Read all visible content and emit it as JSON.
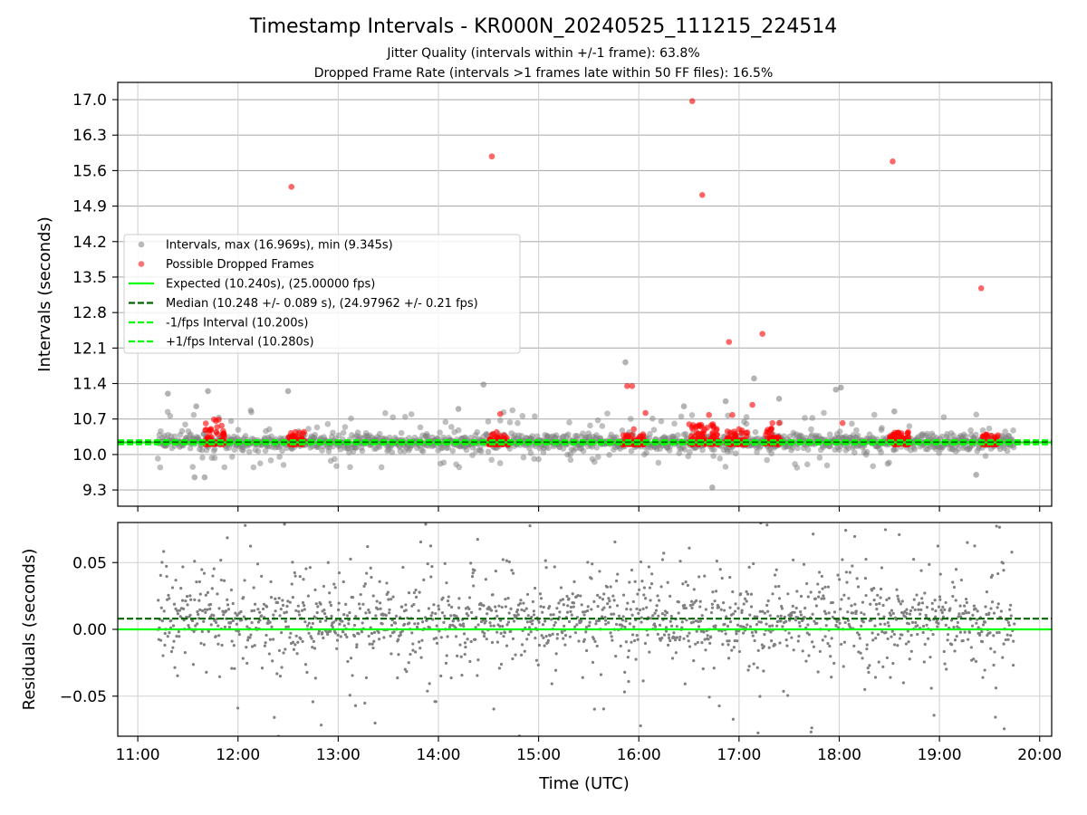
{
  "figure": {
    "title": "Timestamp Intervals - KR000N_20240525_111215_224514",
    "subtitle_1": "Jitter Quality (intervals within +/-1 frame): 63.8%",
    "subtitle_2": "Dropped Frame Rate (intervals >1 frames late within 50 FF files): 16.5%"
  },
  "colors": {
    "intervals": "#808080",
    "dropped": "#ff0000",
    "expected": "#00ff00",
    "median": "#006400",
    "fps_interval": "#00ff00",
    "residuals": "#808080",
    "grid": "#b0b0b0"
  },
  "chart_data": [
    {
      "type": "scatter",
      "panel": "top",
      "ylabel": "Intervals (seconds)",
      "xlim_hours": [
        10.8,
        20.12
      ],
      "ylim": [
        8.98,
        17.34
      ],
      "y_ticks": [
        "9.3",
        "10.0",
        "10.7",
        "11.4",
        "12.1",
        "12.8",
        "13.5",
        "14.2",
        "14.9",
        "15.6",
        "16.3",
        "17.0"
      ],
      "y_tick_values": [
        9.3,
        10.0,
        10.7,
        11.4,
        12.1,
        12.8,
        13.5,
        14.2,
        14.9,
        15.6,
        16.3,
        17.0
      ],
      "grid": true,
      "legend_position": "center-left",
      "legend": [
        {
          "label": "Intervals, max (16.969s), min (9.345s)",
          "kind": "marker",
          "color": "#808080"
        },
        {
          "label": "Possible Dropped Frames",
          "kind": "marker",
          "color": "#ff0000"
        },
        {
          "label": "Expected (10.240s), (25.00000 fps)",
          "kind": "solid",
          "color": "#00ff00"
        },
        {
          "label": "Median (10.248 +/- 0.089 s), (24.97962 +/- 0.21 fps)",
          "kind": "dashed",
          "color": "#006400"
        },
        {
          "label": "-1/fps Interval (10.200s)",
          "kind": "dashed",
          "color": "#00ff00"
        },
        {
          "label": "+1/fps Interval (10.280s)",
          "kind": "dashed",
          "color": "#00ff00"
        }
      ],
      "series": [
        {
          "name": "Intervals, max (16.969s), min (9.345s)",
          "x_range": [
            "11:12",
            "19:45"
          ],
          "y_min": 9.345,
          "y_max": 16.969,
          "notable_points": [
            {
              "x": "11:18",
              "y": 11.2
            },
            {
              "x": "11:35",
              "y": 10.95
            },
            {
              "x": "11:42",
              "y": 11.25
            },
            {
              "x": "12:30",
              "y": 11.25
            },
            {
              "x": "14:27",
              "y": 11.38
            },
            {
              "x": "14:12",
              "y": 10.9
            },
            {
              "x": "15:52",
              "y": 11.82
            },
            {
              "x": "16:27",
              "y": 10.95
            },
            {
              "x": "16:44",
              "y": 9.35
            },
            {
              "x": "16:52",
              "y": 11.05
            },
            {
              "x": "17:09",
              "y": 11.5
            },
            {
              "x": "17:24",
              "y": 11.1
            },
            {
              "x": "17:58",
              "y": 11.28
            },
            {
              "x": "18:01",
              "y": 11.32
            },
            {
              "x": "18:33",
              "y": 10.85
            },
            {
              "x": "11:40",
              "y": 9.55
            },
            {
              "x": "11:34",
              "y": 9.55
            },
            {
              "x": "19:22",
              "y": 9.6
            }
          ]
        },
        {
          "name": "Possible Dropped Frames",
          "points": [
            {
              "x": "12:32",
              "y": 15.28
            },
            {
              "x": "14:32",
              "y": 15.88
            },
            {
              "x": "16:32",
              "y": 16.97
            },
            {
              "x": "16:38",
              "y": 15.12
            },
            {
              "x": "18:32",
              "y": 15.78
            },
            {
              "x": "19:25",
              "y": 13.28
            },
            {
              "x": "17:14",
              "y": 12.38
            },
            {
              "x": "16:54",
              "y": 12.22
            },
            {
              "x": "15:53",
              "y": 11.35
            },
            {
              "x": "15:56",
              "y": 11.35
            },
            {
              "x": "16:04",
              "y": 10.82
            },
            {
              "x": "17:08",
              "y": 10.98
            },
            {
              "x": "17:20",
              "y": 10.62
            },
            {
              "x": "17:24",
              "y": 10.62
            },
            {
              "x": "16:56",
              "y": 10.78
            },
            {
              "x": "16:42",
              "y": 10.78
            },
            {
              "x": "14:37",
              "y": 10.8
            },
            {
              "x": "18:02",
              "y": 10.62
            },
            {
              "x": "17:00",
              "y": 10.5
            },
            {
              "x": "15:57",
              "y": 10.5
            }
          ],
          "clusters": [
            {
              "x_range": [
                "11:40",
                "11:52"
              ],
              "y_range": [
                10.2,
                10.7
              ]
            },
            {
              "x_range": [
                "12:30",
                "12:40"
              ],
              "y_range": [
                10.2,
                10.45
              ]
            },
            {
              "x_range": [
                "14:30",
                "14:42"
              ],
              "y_range": [
                10.2,
                10.45
              ]
            },
            {
              "x_range": [
                "15:50",
                "16:03"
              ],
              "y_range": [
                10.2,
                10.4
              ]
            },
            {
              "x_range": [
                "16:30",
                "16:48"
              ],
              "y_range": [
                10.2,
                10.6
              ]
            },
            {
              "x_range": [
                "16:52",
                "17:05"
              ],
              "y_range": [
                10.2,
                10.5
              ]
            },
            {
              "x_range": [
                "17:15",
                "17:25"
              ],
              "y_range": [
                10.2,
                10.55
              ]
            },
            {
              "x_range": [
                "18:30",
                "18:42"
              ],
              "y_range": [
                10.2,
                10.45
              ]
            },
            {
              "x_range": [
                "19:25",
                "19:35"
              ],
              "y_range": [
                10.2,
                10.4
              ]
            }
          ]
        }
      ],
      "reference_lines": {
        "expected": 10.24,
        "median": 10.248,
        "minus_1_fps": 10.2,
        "plus_1_fps": 10.28
      }
    },
    {
      "type": "scatter",
      "panel": "bottom",
      "ylabel": "Residuals (seconds)",
      "xlabel": "Time (UTC)",
      "xlim_hours": [
        10.8,
        20.12
      ],
      "ylim": [
        -0.08,
        0.08
      ],
      "y_ticks": [
        "−0.05",
        "0.00",
        "0.05"
      ],
      "y_tick_values": [
        -0.05,
        0.0,
        0.05
      ],
      "x_ticks": [
        "11:00",
        "12:00",
        "13:00",
        "14:00",
        "15:00",
        "16:00",
        "17:00",
        "18:00",
        "19:00",
        "20:00"
      ],
      "x_tick_values": [
        11,
        12,
        13,
        14,
        15,
        16,
        17,
        18,
        19,
        20
      ],
      "grid": true,
      "series": [
        {
          "name": "Residuals",
          "x_range": [
            "11:12",
            "19:45"
          ],
          "y_core_range": [
            -0.01,
            0.03
          ],
          "y_spread": [
            -0.08,
            0.08
          ]
        }
      ],
      "reference_lines": {
        "zero": 0.0,
        "median_offset": 0.008
      }
    }
  ]
}
